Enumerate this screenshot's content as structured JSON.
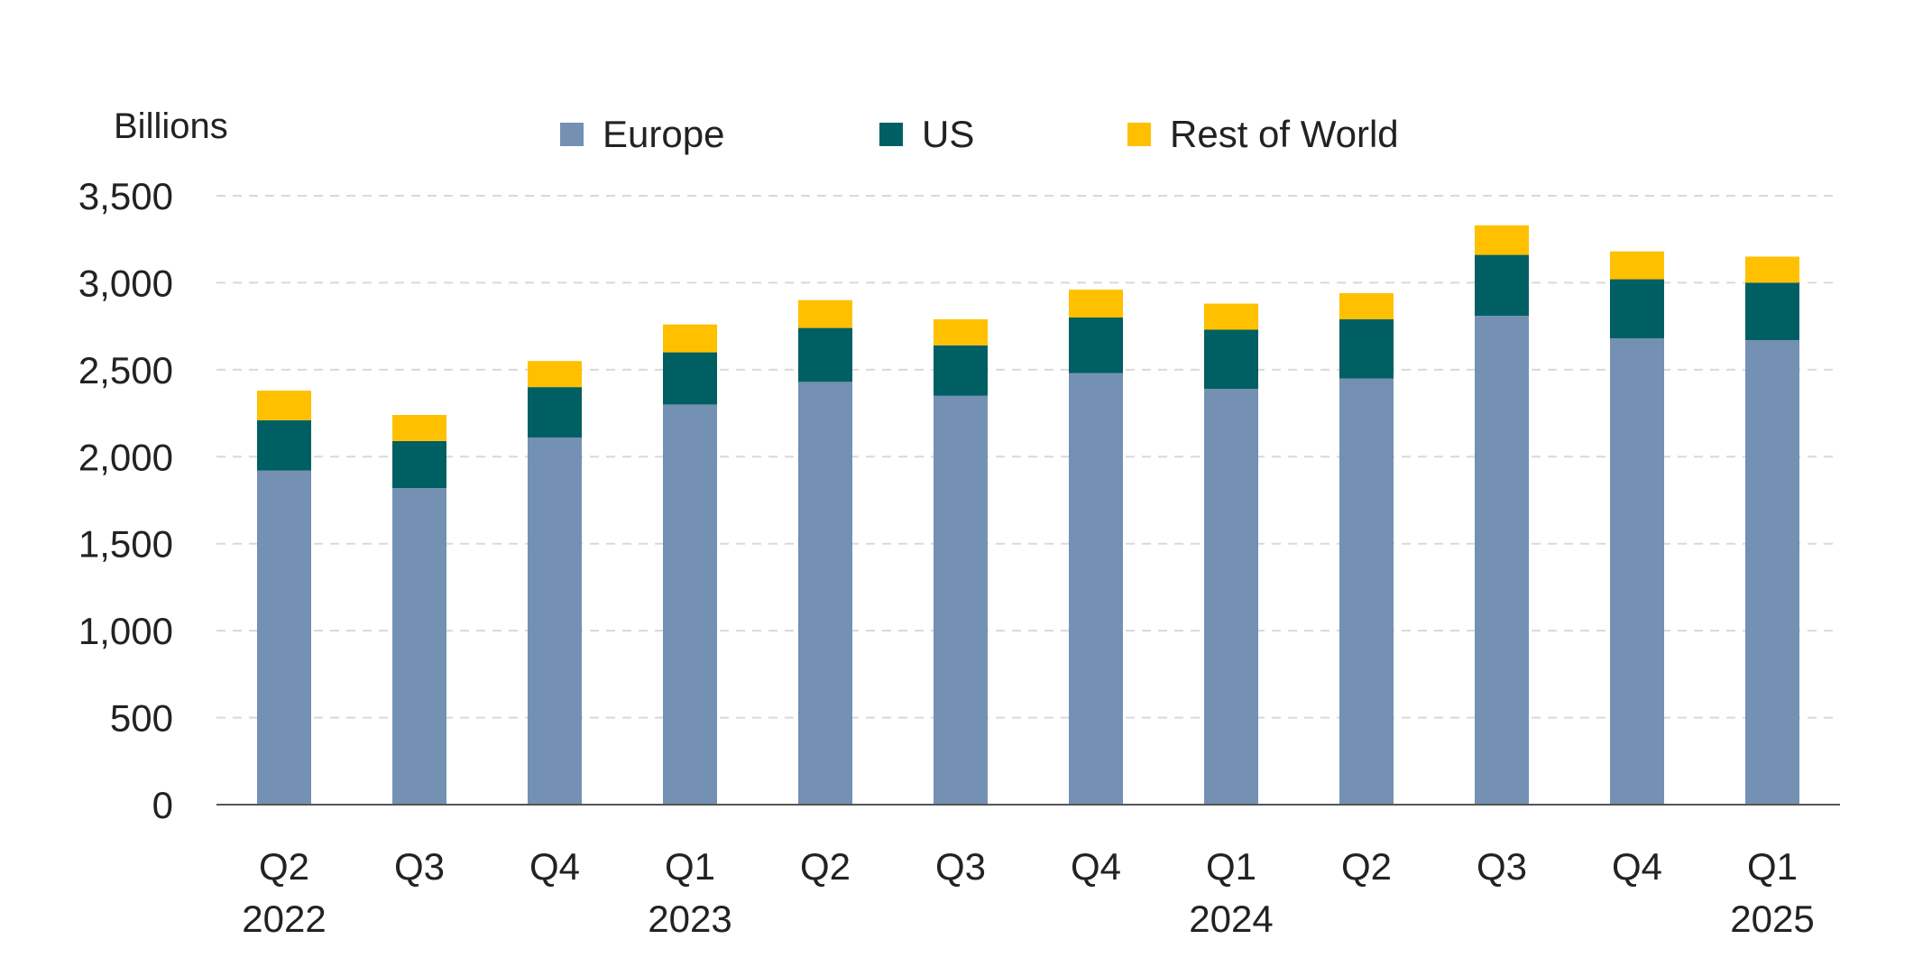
{
  "chart_data": {
    "type": "bar",
    "stacked": true,
    "ylabel": "Billions",
    "ylim": [
      0,
      3500
    ],
    "yticks": [
      0,
      500,
      1000,
      1500,
      2000,
      2500,
      3000,
      3500
    ],
    "ytick_labels": [
      "0",
      "500",
      "1,000",
      "1,500",
      "2,000",
      "2,500",
      "3,000",
      "3,500"
    ],
    "grid": "horizontal dashed",
    "legend_position": "top",
    "categories": [
      {
        "quarter": "Q2",
        "year": "2022"
      },
      {
        "quarter": "Q3",
        "year": ""
      },
      {
        "quarter": "Q4",
        "year": ""
      },
      {
        "quarter": "Q1",
        "year": "2023"
      },
      {
        "quarter": "Q2",
        "year": ""
      },
      {
        "quarter": "Q3",
        "year": ""
      },
      {
        "quarter": "Q4",
        "year": ""
      },
      {
        "quarter": "Q1",
        "year": "2024"
      },
      {
        "quarter": "Q2",
        "year": ""
      },
      {
        "quarter": "Q3",
        "year": ""
      },
      {
        "quarter": "Q4",
        "year": ""
      },
      {
        "quarter": "Q1",
        "year": "2025"
      }
    ],
    "series": [
      {
        "name": "Europe",
        "color": "#7490b3",
        "values": [
          1920,
          1820,
          2110,
          2300,
          2430,
          2350,
          2480,
          2390,
          2450,
          2810,
          2680,
          2670
        ]
      },
      {
        "name": "US",
        "color": "#005f62",
        "values": [
          290,
          270,
          290,
          300,
          310,
          290,
          320,
          340,
          340,
          350,
          340,
          330
        ]
      },
      {
        "name": "Rest of World",
        "color": "#ffc000",
        "values": [
          170,
          150,
          150,
          160,
          160,
          150,
          160,
          150,
          150,
          170,
          160,
          150
        ]
      }
    ]
  }
}
